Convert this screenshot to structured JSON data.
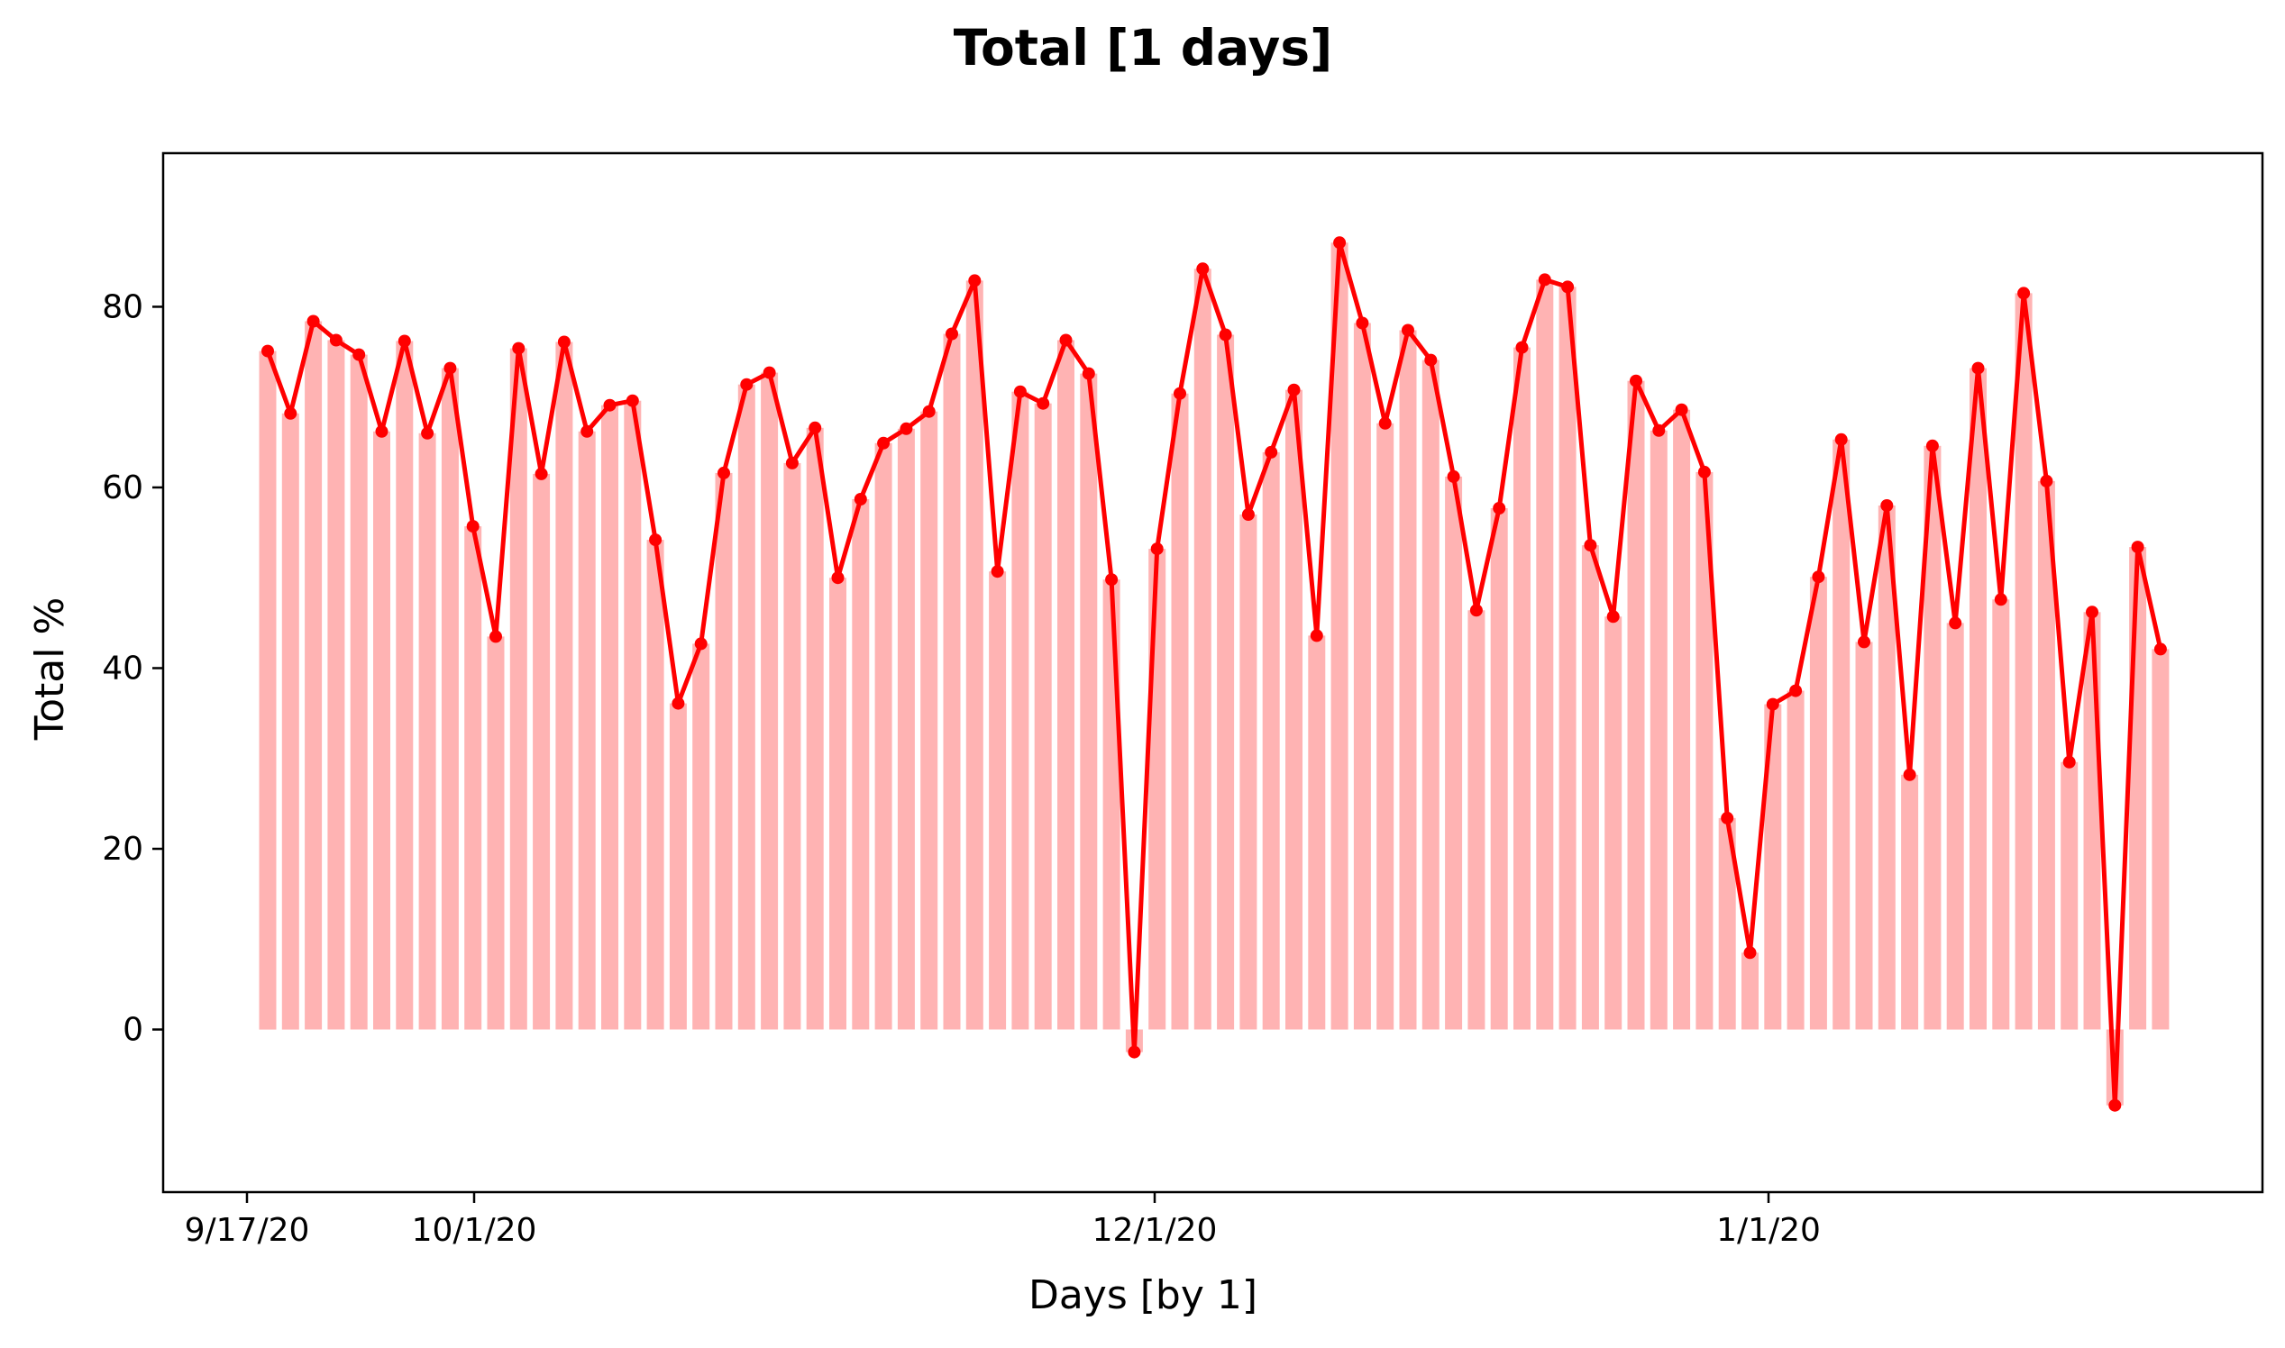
{
  "chart_data": {
    "type": "bar",
    "title": "Total [1 days]",
    "xlabel": "Days [by 1]",
    "ylabel": "Total %",
    "ylim": [
      -18,
      97
    ],
    "x_tick_labels": [
      "9/17/20",
      "10/1/20",
      "12/1/20",
      "1/1/20"
    ],
    "y_ticks": [
      0,
      20,
      40,
      60,
      80
    ],
    "bar_color": "#ffb3b3",
    "line_color": "#ff0000",
    "grid": false,
    "series": [
      {
        "values": [
          75.1,
          68.2,
          78.4,
          76.3,
          74.7,
          66.2,
          76.2,
          66.0,
          73.2,
          55.7,
          43.5,
          75.4,
          61.5,
          76.1,
          66.2,
          69.1,
          69.6,
          54.2,
          36.1,
          42.7,
          61.6,
          71.4,
          72.7,
          62.7,
          66.6,
          50.0,
          58.7,
          64.9,
          66.5,
          68.4,
          77.0,
          82.9,
          50.7,
          70.6,
          69.3,
          76.3,
          72.6,
          49.8,
          -2.5,
          53.2,
          70.4,
          84.2,
          76.9,
          57.0,
          63.9,
          70.8,
          43.6,
          87.1,
          78.2,
          67.1,
          77.4,
          74.1,
          61.2,
          46.4,
          57.7,
          75.5,
          83.0,
          82.2,
          53.6,
          45.7,
          71.8,
          66.3,
          68.6,
          61.7,
          23.4,
          8.5,
          36.0,
          37.5,
          50.1,
          65.3,
          42.9,
          58.0,
          28.2,
          64.6,
          45.0,
          73.2,
          47.6,
          81.5,
          60.7,
          29.6,
          46.2,
          -8.4,
          53.4,
          42.1
        ]
      }
    ]
  }
}
